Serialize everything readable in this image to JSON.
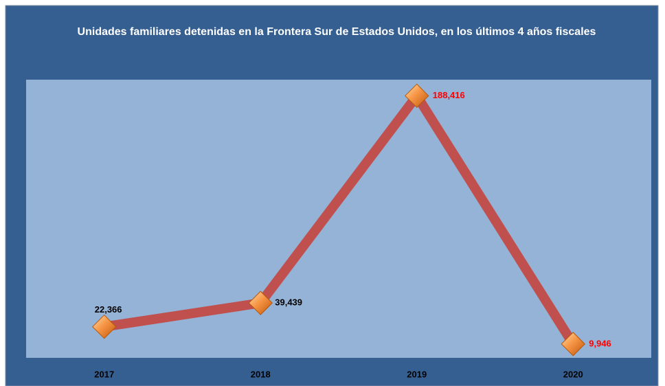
{
  "chart_data": {
    "type": "line",
    "title": "Unidades familiares detenidas en la Frontera Sur de Estados Unidos, en los últimos 4 años fiscales",
    "categories": [
      "2017",
      "2018",
      "2019",
      "2020"
    ],
    "values": [
      22366,
      39439,
      188416,
      9946
    ],
    "value_labels": [
      "22,366",
      "39,439",
      "188,416",
      "9,946"
    ],
    "value_label_colors": [
      "#000000",
      "#000000",
      "#ff0000",
      "#ff0000"
    ],
    "color": "#c0504d",
    "marker_color": "#f79646",
    "ylim": [
      0,
      200000
    ]
  }
}
